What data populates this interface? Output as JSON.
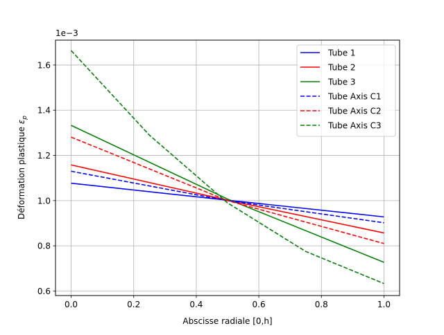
{
  "chart_data": {
    "type": "line",
    "title": "",
    "xlabel": "Abscisse radiale [0,h]",
    "ylabel": "Déformation plastique ε_p",
    "ylabel_prefix": "Déformation plastique ",
    "ylabel_symbol": "ε",
    "ylabel_subscript": "p",
    "y_offset_text": "1e−3",
    "xlim": [
      -0.05,
      1.05
    ],
    "ylim": [
      0.58,
      1.71
    ],
    "y_scale_factor": 0.001,
    "grid": true,
    "legend_position": "top-right",
    "x_ticks": [
      {
        "value": 0.0,
        "label": "0.0"
      },
      {
        "value": 0.2,
        "label": "0.2"
      },
      {
        "value": 0.4,
        "label": "0.4"
      },
      {
        "value": 0.6,
        "label": "0.6"
      },
      {
        "value": 0.8,
        "label": "0.8"
      },
      {
        "value": 1.0,
        "label": "1.0"
      }
    ],
    "y_ticks": [
      {
        "value": 0.6,
        "label": "0.6"
      },
      {
        "value": 0.8,
        "label": "0.8"
      },
      {
        "value": 1.0,
        "label": "1.0"
      },
      {
        "value": 1.2,
        "label": "1.2"
      },
      {
        "value": 1.4,
        "label": "1.4"
      },
      {
        "value": 1.6,
        "label": "1.6"
      }
    ],
    "series": [
      {
        "name": "Tube 1",
        "color": "#0000ff",
        "style": "solid",
        "x": [
          0.0,
          0.5,
          1.0
        ],
        "y": [
          1.077,
          1.002,
          0.928
        ]
      },
      {
        "name": "Tube 2",
        "color": "#ff0000",
        "style": "solid",
        "x": [
          0.0,
          0.5,
          1.0
        ],
        "y": [
          1.158,
          1.002,
          0.857
        ]
      },
      {
        "name": "Tube 3",
        "color": "#008000",
        "style": "solid",
        "x": [
          0.0,
          0.5,
          1.0
        ],
        "y": [
          1.333,
          1.007,
          0.727
        ]
      },
      {
        "name": "Tube Axis C1",
        "color": "#0000ff",
        "style": "dashed",
        "x": [
          0.0,
          0.5,
          1.0
        ],
        "y": [
          1.13,
          1.0,
          0.902
        ]
      },
      {
        "name": "Tube Axis C2",
        "color": "#ff0000",
        "style": "dashed",
        "x": [
          0.0,
          0.5,
          1.0
        ],
        "y": [
          1.281,
          1.0,
          0.81
        ]
      },
      {
        "name": "Tube Axis C3",
        "color": "#008000",
        "style": "dashed",
        "x": [
          0.0,
          0.25,
          0.5,
          0.75,
          1.0
        ],
        "y": [
          1.664,
          1.29,
          0.99,
          0.775,
          0.633
        ]
      }
    ]
  }
}
